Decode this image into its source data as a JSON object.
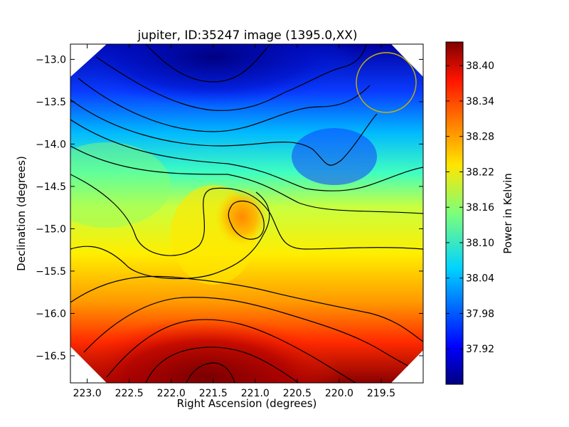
{
  "chart_data": {
    "type": "heatmap",
    "title": "jupiter, ID:35247 image (1395.0,XX)",
    "xlabel": "Right Ascension (degrees)",
    "ylabel": "Declination (degrees)",
    "colorbar_label": "Power in Kelvin",
    "xlim": [
      223.2,
      219.0
    ],
    "ylim": [
      -16.82,
      -12.82
    ],
    "x_ticks": [
      223.0,
      222.5,
      222.0,
      221.5,
      221.0,
      220.5,
      220.0,
      219.5
    ],
    "x_tick_labels": [
      "223.0",
      "222.5",
      "222.0",
      "221.5",
      "221.0",
      "220.5",
      "220.0",
      "219.5"
    ],
    "y_ticks": [
      -13.0,
      -13.5,
      -14.0,
      -14.5,
      -15.0,
      -15.5,
      -16.0,
      -16.5
    ],
    "y_tick_labels": [
      "−13.0",
      "−13.5",
      "−14.0",
      "−14.5",
      "−15.0",
      "−15.5",
      "−16.0",
      "−16.5"
    ],
    "colorbar_range": [
      37.86,
      38.44
    ],
    "colorbar_ticks": [
      37.92,
      37.98,
      38.04,
      38.1,
      38.16,
      38.22,
      38.28,
      38.34,
      38.4
    ],
    "colorbar_tick_labels": [
      "37.92",
      "37.98",
      "38.04",
      "38.10",
      "38.16",
      "38.22",
      "38.28",
      "38.34",
      "38.40"
    ],
    "colormap": "jet",
    "peaks": [
      {
        "label": "max",
        "ra": 221.45,
        "dec": -16.75,
        "value": 38.44
      },
      {
        "label": "local max",
        "ra": 221.15,
        "dec": -14.92,
        "value": 38.31
      },
      {
        "label": "min",
        "ra": 221.45,
        "dec": -12.95,
        "value": 37.86
      }
    ],
    "marker": {
      "shape": "circle",
      "ra": 219.47,
      "dec": -13.28,
      "radius_deg": 0.36,
      "color": "#c8b400"
    },
    "contours": "black solid lines"
  }
}
